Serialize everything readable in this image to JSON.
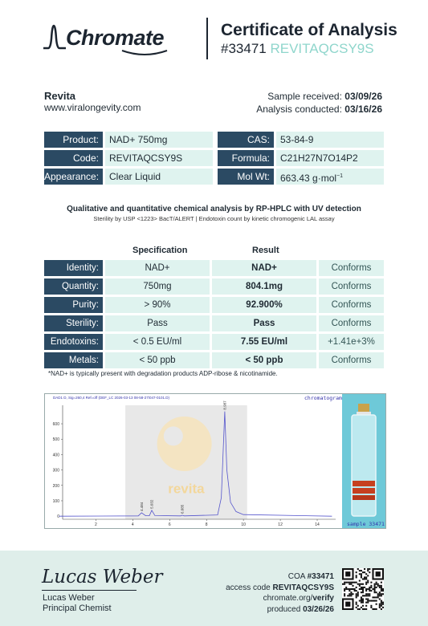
{
  "header": {
    "brand": "Chromate",
    "title": "Certificate of Analysis",
    "coa_number": "#33471",
    "code": "REVITAQCSY9S"
  },
  "client": {
    "name": "Revita",
    "website": "www.viralongevity.com"
  },
  "dates": {
    "received_label": "Sample received:",
    "received": "03/09/26",
    "conducted_label": "Analysis conducted:",
    "conducted": "03/16/26"
  },
  "info": {
    "product_label": "Product:",
    "product": "NAD+ 750mg",
    "cas_label": "CAS:",
    "cas": "53-84-9",
    "code_label": "Code:",
    "code": "REVITAQCSY9S",
    "formula_label": "Formula:",
    "formula": "C21H27N7O14P2",
    "appearance_label": "Appearance:",
    "appearance": "Clear Liquid",
    "molwt_label": "Mol Wt:",
    "molwt": "663.43 g·mol",
    "molwt_sup": "−1"
  },
  "method": {
    "title": "Qualitative and quantitative chemical analysis by RP-HPLC with UV detection",
    "subtitle": "Sterility by USP <1223> BacT/ALERT | Endotoxin count by kinetic chromogenic LAL assay"
  },
  "results": {
    "spec_header": "Specification",
    "result_header": "Result",
    "rows": [
      {
        "label": "Identity:",
        "spec": "NAD+",
        "result": "NAD+",
        "status": "Conforms"
      },
      {
        "label": "Quantity:",
        "spec": "750mg",
        "result": "804.1mg",
        "status": "Conforms"
      },
      {
        "label": "Purity:",
        "spec": "> 90%",
        "result": "92.900%",
        "status": "Conforms"
      },
      {
        "label": "Sterility:",
        "spec": "Pass",
        "result": "Pass",
        "status": "Conforms"
      },
      {
        "label": "Endotoxins:",
        "spec": "< 0.5 EU/ml",
        "result": "7.55 EU/ml",
        "status": "+1.41e+3%"
      },
      {
        "label": "Metals:",
        "spec": "< 50 ppb",
        "result": "< 50 ppb",
        "status": "Conforms"
      }
    ],
    "footnote": "*NAD+ is typically present with degradation products ADP-ribose & nicotinamide."
  },
  "chromatogram": {
    "header": "DAD1 D, Sig=260,4 Ref=off (DEF_LC 2026-03-13 08-58-27\\047-0101.D)",
    "tag": "chromatogram",
    "watermark": "revita",
    "sample_tag": "sample 33471",
    "y_ticks": [
      "0",
      "100",
      "200",
      "300",
      "400",
      "500",
      "600"
    ],
    "x_ticks": [
      "2",
      "4",
      "6",
      "8",
      "10",
      "12",
      "14"
    ],
    "peak_labels": [
      "4.484",
      "5.032",
      "6.685",
      "8.987"
    ]
  },
  "chart_data": {
    "type": "line",
    "x": [
      0,
      4.3,
      4.48,
      4.7,
      4.9,
      5.03,
      5.2,
      6.6,
      6.68,
      6.8,
      8.6,
      8.8,
      8.987,
      9.1,
      9.3,
      9.6,
      10,
      14.8
    ],
    "y": [
      0,
      2,
      22,
      3,
      3,
      38,
      4,
      2,
      6,
      2,
      8,
      120,
      680,
      300,
      90,
      30,
      10,
      0
    ],
    "xlim": [
      0.2,
      15
    ],
    "ylim": [
      -20,
      720
    ],
    "grid": false
  },
  "footer": {
    "signature": "Lucas Weber",
    "signer_name": "Lucas Weber",
    "signer_title": "Principal Chemist",
    "coa_label": "COA",
    "coa_number": "#33471",
    "access_label": "access code",
    "access_code": "REVITAQCSY9S",
    "verify_domain": "chromate.org/",
    "verify_path": "verify",
    "produced_label": "produced",
    "produced_date": "03/26/26"
  },
  "colors": {
    "label_bg": "#2b4a63",
    "cell_bg": "#dff3ef",
    "accent": "#8fd6cc",
    "footer_bg": "#dfeeea",
    "trace": "#5555cc"
  }
}
